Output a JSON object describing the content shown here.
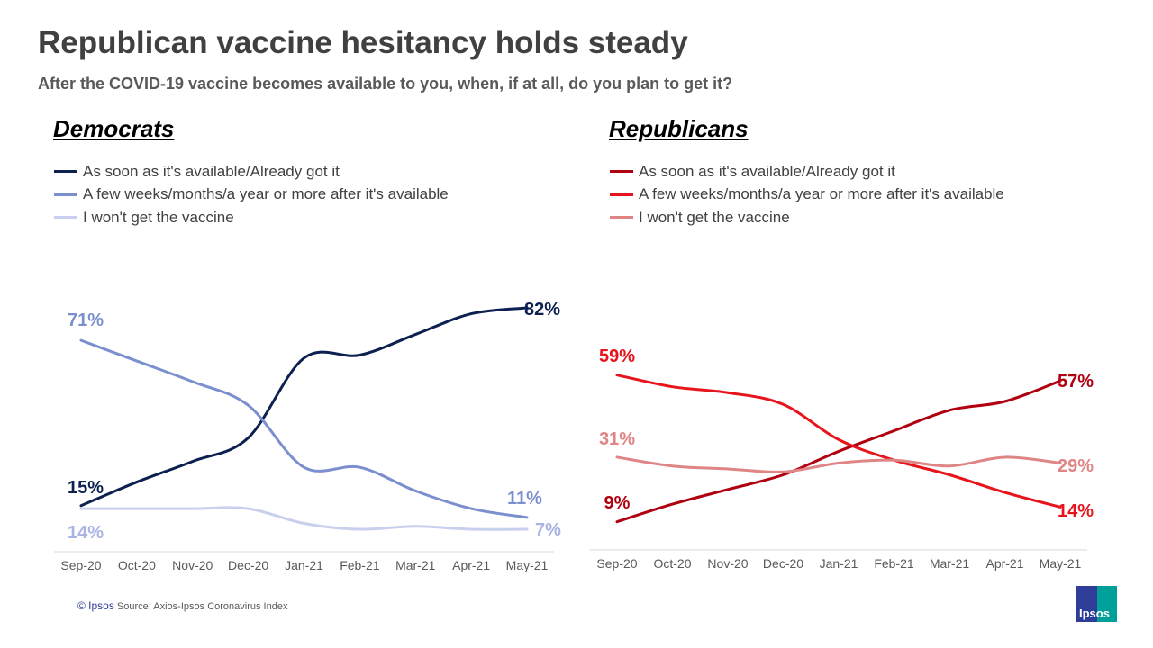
{
  "title": "Republican vaccine hesitancy holds steady",
  "subtitle": "After the COVID-19  vaccine becomes available to you, when, if at all, do you plan to get it?",
  "footer": {
    "copyright": "© Ipsos",
    "source": "Source: Axios-Ipsos Coronavirus Index"
  },
  "logo_text": "Ipsos",
  "chart_data": [
    {
      "type": "line",
      "title": "Democrats",
      "title_color": "#0d2150",
      "categories": [
        "Sep-20",
        "Oct-20",
        "Nov-20",
        "Dec-20",
        "Jan-21",
        "Feb-21",
        "Mar-21",
        "Apr-21",
        "May-21"
      ],
      "ylim": [
        0,
        100
      ],
      "grid": false,
      "legend": "top-left",
      "smooth": true,
      "series": [
        {
          "name": "As soon as it's available/Already got it",
          "color": "#0d2150",
          "values": [
            15,
            23,
            30,
            38,
            65,
            66,
            73,
            80,
            82
          ],
          "start_label": "15%",
          "end_label": "82%"
        },
        {
          "name": "A few weeks/months/a year or more after it's available",
          "color": "#7b8fcf",
          "values": [
            71,
            64,
            57,
            49,
            28,
            28,
            20,
            14,
            11
          ],
          "start_label": "71%",
          "end_label": "11%"
        },
        {
          "name": "I won't get the vaccine",
          "color": "#c9d0ee",
          "label_color": "#a9b4e2",
          "values": [
            14,
            14,
            14,
            14,
            9,
            7,
            8,
            7,
            7
          ],
          "start_label": "14%",
          "end_label": "7%"
        }
      ]
    },
    {
      "type": "line",
      "title": "Republicans",
      "title_color": "#c00000",
      "categories": [
        "Sep-20",
        "Oct-20",
        "Nov-20",
        "Dec-20",
        "Jan-21",
        "Feb-21",
        "Mar-21",
        "Apr-21",
        "May-21"
      ],
      "ylim": [
        0,
        100
      ],
      "grid": false,
      "legend": "top-left",
      "smooth": true,
      "series": [
        {
          "name": "As soon as it's available/Already got it",
          "color": "#b00010",
          "values": [
            9,
            15,
            20,
            25,
            33,
            40,
            47,
            50,
            57
          ],
          "start_label": "9%",
          "end_label": "57%"
        },
        {
          "name": "A few weeks/months/a year or more after it's available",
          "color": "#e8141c",
          "values": [
            59,
            55,
            53,
            49,
            37,
            30,
            25,
            19,
            14
          ],
          "start_label": "59%",
          "end_label": "14%"
        },
        {
          "name": "I won't get the vaccine",
          "color": "#e08585",
          "values": [
            31,
            28,
            27,
            26,
            29,
            30,
            28,
            31,
            29
          ],
          "start_label": "31%",
          "end_label": "29%"
        }
      ]
    }
  ]
}
